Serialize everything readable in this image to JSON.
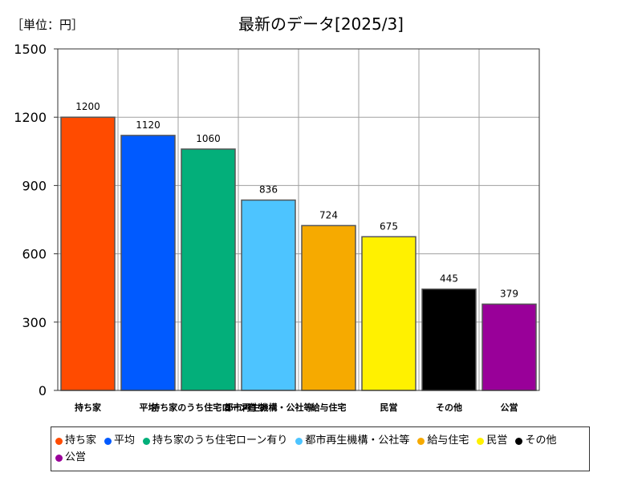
{
  "unit_label": "［単位：円］",
  "title": "最新のデータ[2025/3]",
  "chart_data": {
    "type": "bar",
    "categories": [
      "持ち家",
      "平均",
      "持ち家のうち住宅ローン有り",
      "都市再生機構・公社等",
      "給与住宅",
      "民営",
      "その他",
      "公営"
    ],
    "values": [
      1200,
      1120,
      1060,
      836,
      724,
      675,
      445,
      379
    ],
    "colors": [
      "#ff4b00",
      "#005aff",
      "#03af7a",
      "#4dc4ff",
      "#f6aa00",
      "#fff100",
      "#000000",
      "#990099"
    ],
    "ylim": [
      0,
      1500
    ],
    "yticks": [
      0,
      300,
      600,
      900,
      1200,
      1500
    ],
    "grid": true,
    "legend_position": "bottom"
  }
}
